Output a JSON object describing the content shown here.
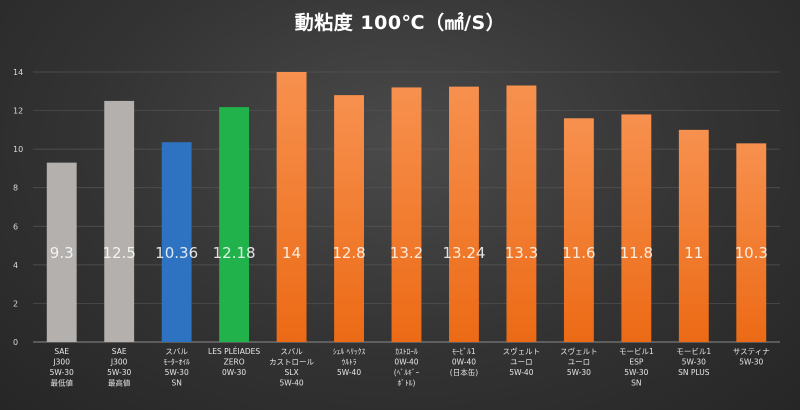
{
  "chart_data": {
    "type": "bar",
    "title": "動粘度 100℃（㎟/S）",
    "ylim": [
      0,
      14
    ],
    "yticks": [
      0,
      2,
      4,
      6,
      8,
      10,
      12,
      14
    ],
    "grid": true,
    "legend": "none",
    "categories": [
      [
        "SAE",
        "J300",
        "5W-30",
        "最低値"
      ],
      [
        "SAE",
        "J300",
        "5W-30",
        "最高値"
      ],
      [
        "スバル",
        "ﾓｰﾀｰｵｲﾙ",
        "5W-30",
        "SN"
      ],
      [
        "LES PLÉIADES",
        "ZERO",
        "0W-30"
      ],
      [
        "スバル",
        "カストロール",
        "SLX",
        "5W-40"
      ],
      [
        "ｼｪﾙ ﾍﾘｯｸｽ",
        "ｳﾙﾄﾗ",
        "5W-40"
      ],
      [
        "ｶｽﾄﾛｰﾙ",
        "0W-40",
        "(ﾍﾞﾙｷﾞｰ",
        "ﾎﾞﾄﾙ)"
      ],
      [
        "ﾓｰﾋﾞﾙ1",
        "0W-40",
        "(日本缶)"
      ],
      [
        "スヴェルト",
        "ユーロ",
        "5W-40"
      ],
      [
        "スヴェルト",
        "ユーロ",
        "5W-30"
      ],
      [
        "モービル1",
        "ESP",
        "5W-30",
        "SN"
      ],
      [
        "モービル1",
        "5W-30",
        "SN PLUS"
      ],
      [
        "サスティナ",
        "5W-30"
      ]
    ],
    "values": [
      9.3,
      12.5,
      10.36,
      12.18,
      14,
      12.8,
      13.2,
      13.24,
      13.3,
      11.6,
      11.8,
      11,
      10.3
    ],
    "data_labels": [
      "9.3",
      "12.5",
      "10.36",
      "12.18",
      "14",
      "12.8",
      "13.2",
      "13.24",
      "13.3",
      "11.6",
      "11.8",
      "11",
      "10.3"
    ],
    "bar_colors": [
      "#b3b0ad",
      "#b3b0ad",
      "#2e72c2",
      "#21b24b",
      "#f0782a",
      "#f0782a",
      "#f0782a",
      "#f0782a",
      "#f0782a",
      "#f0782a",
      "#f0782a",
      "#f0782a",
      "#f0782a"
    ]
  }
}
